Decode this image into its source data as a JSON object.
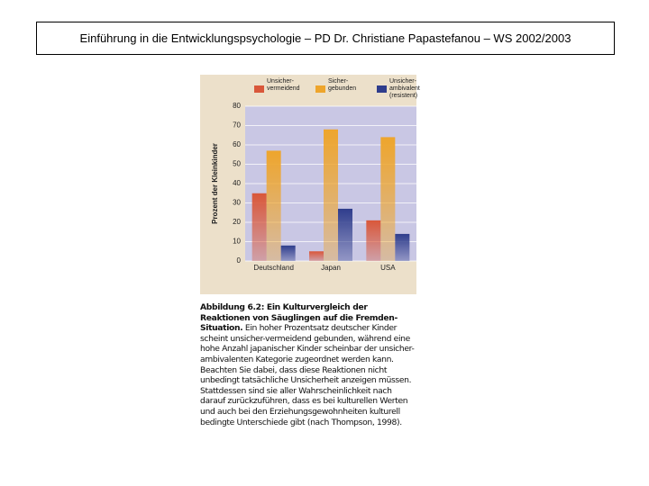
{
  "header": {
    "title": "Einführung in die Entwicklungspsychologie – PD Dr. Christiane Papastefanou – WS 2002/2003"
  },
  "chart_data": {
    "type": "bar",
    "y_label": "Prozent der Kleinkinder",
    "categories": [
      "Deutschland",
      "Japan",
      "USA"
    ],
    "series": [
      {
        "name": "Unsicher-\nvermeidend",
        "color": "#d9573a",
        "values": [
          35,
          5,
          21
        ]
      },
      {
        "name": "Sicher-\ngebunden",
        "color": "#eea52c",
        "values": [
          57,
          68,
          64
        ]
      },
      {
        "name": "Unsicher-\nambivalent\n(resistent)",
        "color": "#2f3d8c",
        "values": [
          8,
          27,
          14
        ]
      }
    ],
    "ylim": [
      0,
      80
    ],
    "yticks": [
      0,
      10,
      20,
      30,
      40,
      50,
      60,
      70,
      80
    ],
    "grid": true
  },
  "caption": {
    "bold": "Abbildung 6.2: Ein Kulturvergleich der Reaktionen von Säuglingen auf die Fremden-Situation.",
    "text": "Ein hoher Prozentsatz deutscher Kinder scheint unsicher-vermeidend gebunden, während eine hohe Anzahl japanischer Kinder scheinbar der unsicher-ambivalenten Kategorie zugeordnet werden kann. Beachten Sie dabei, dass diese Reaktionen nicht unbedingt tatsächliche Unsicherheit anzeigen müssen. Stattdessen sind sie aller Wahrscheinlichkeit nach darauf zurückzuführen, dass es bei kulturellen Werten und auch bei den Erziehungsgewohnheiten kulturell bedingte Unterschiede gibt (nach Thompson, 1998)."
  }
}
